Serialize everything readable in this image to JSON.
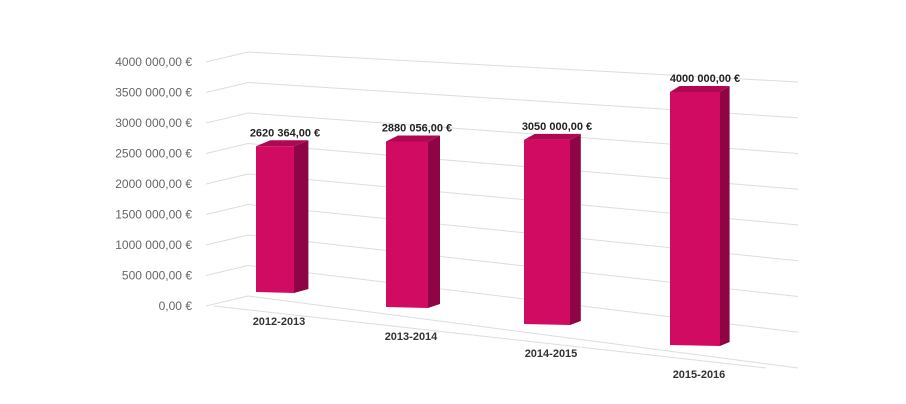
{
  "chart_data": {
    "type": "bar",
    "style": "3d-perspective",
    "categories": [
      "2012-2013",
      "2013-2014",
      "2014-2015",
      "2015-2016"
    ],
    "values": [
      2620364.0,
      2880056.0,
      3050000.0,
      4000000.0
    ],
    "data_labels": [
      "2620 364,00 €",
      "2880 056,00 €",
      "3050 000,00 €",
      "4000 000,00 €"
    ],
    "y_ticks": [
      0,
      500000,
      1000000,
      1500000,
      2000000,
      2500000,
      3000000,
      3500000,
      4000000
    ],
    "y_tick_labels": [
      "0,00 €",
      "500 000,00 €",
      "1000 000,00 €",
      "1500 000,00 €",
      "2000 000,00 €",
      "2500 000,00 €",
      "3000 000,00 €",
      "3500 000,00 €",
      "4000 000,00 €"
    ],
    "ylim": [
      0,
      4000000
    ],
    "title": "",
    "xlabel": "",
    "ylabel": "",
    "grid": true,
    "legend": "none",
    "colors": {
      "bar_front": "#d10a62",
      "bar_side": "#8e0444",
      "bar_top": "#b00752",
      "grid": "#dddddd",
      "label": "#666666"
    }
  }
}
